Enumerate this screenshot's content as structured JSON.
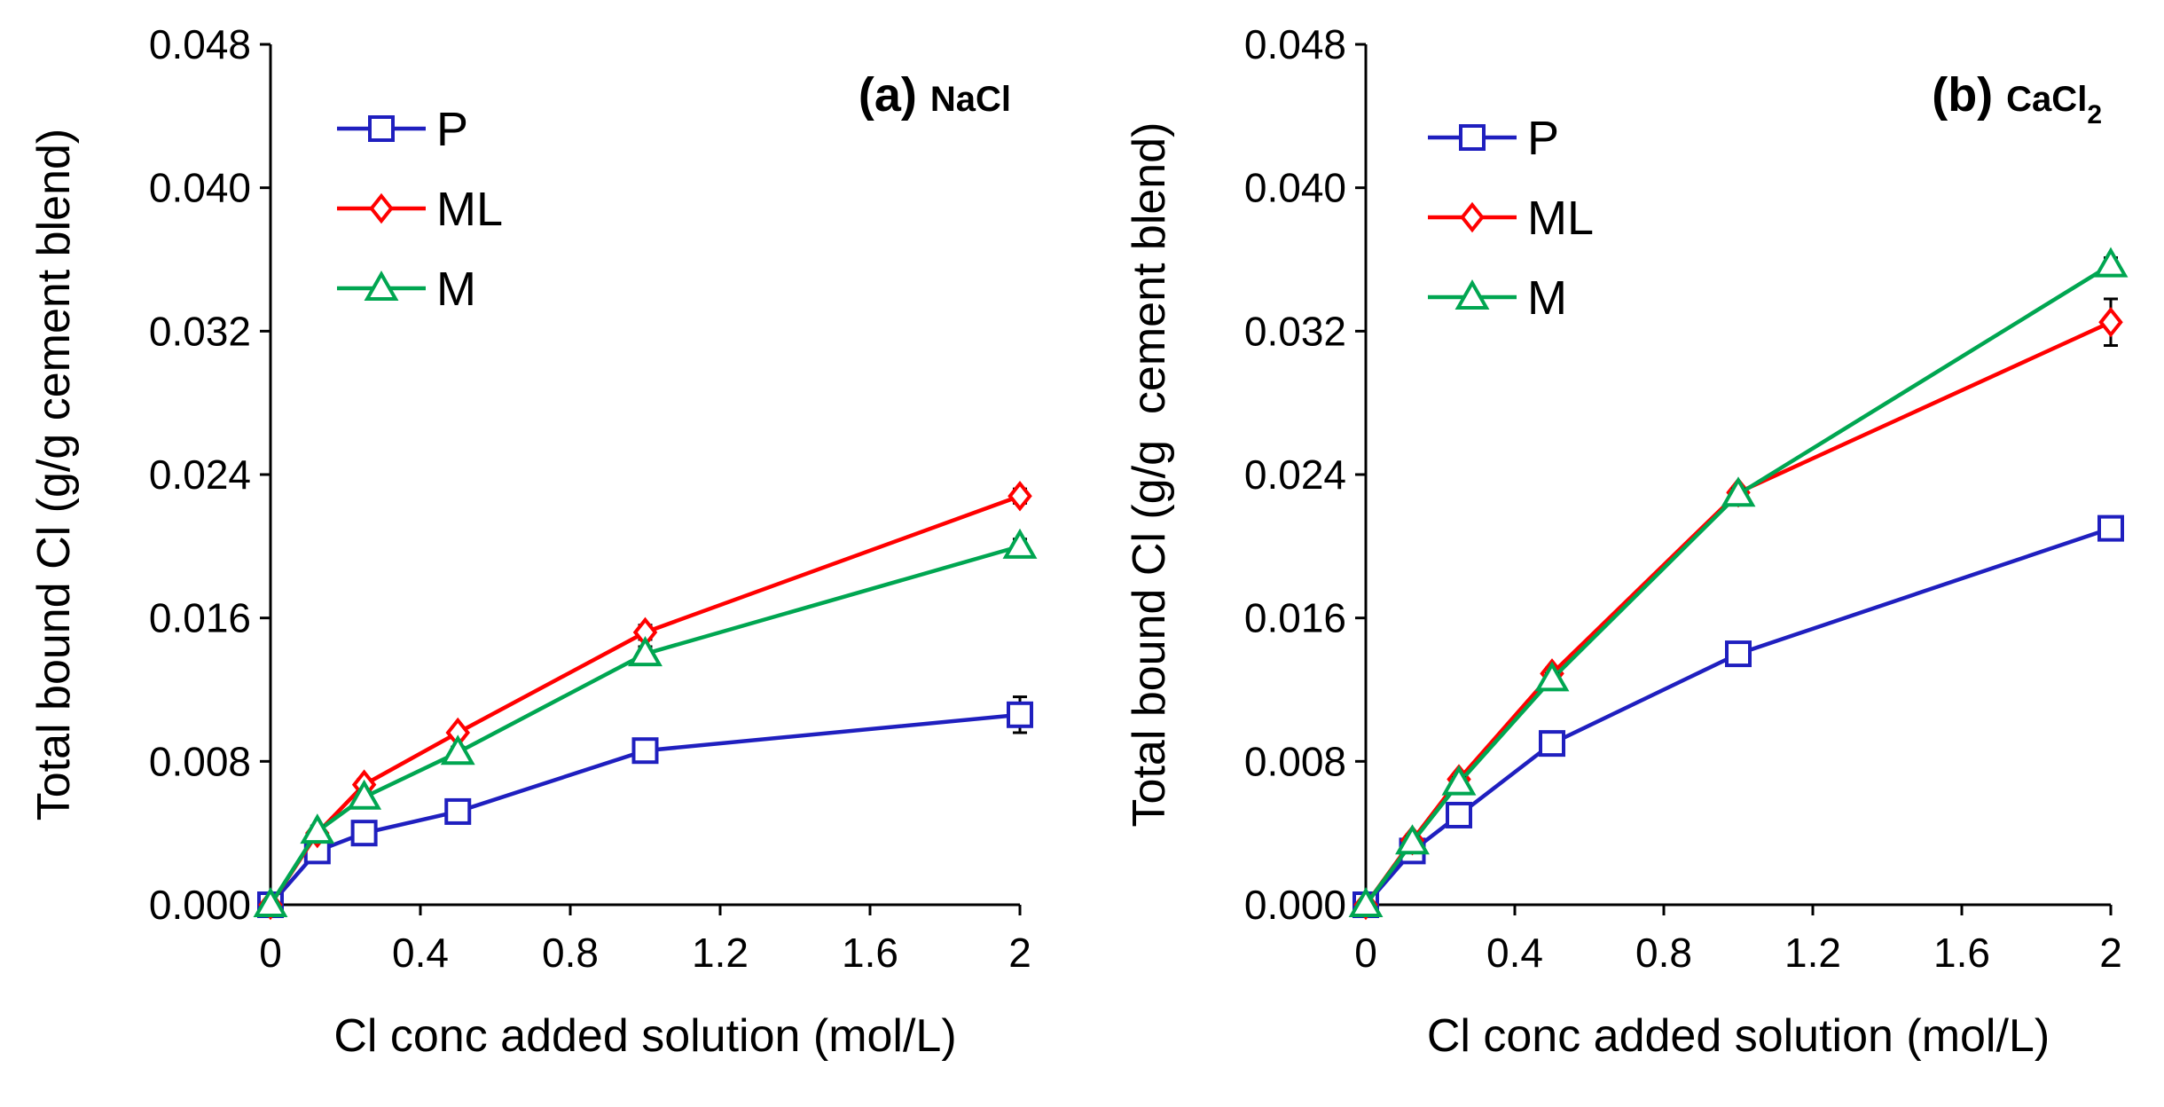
{
  "chart_data": [
    {
      "type": "line",
      "title": "(a)",
      "title_suffix": "NaCl",
      "title_subscript": "",
      "xlabel": "Cl conc added solution (mol/L)",
      "ylabel": "Total bound Cl (g/g cement blend)",
      "xlim": [
        0,
        2
      ],
      "ylim": [
        0,
        0.048
      ],
      "x_ticks": [
        0,
        0.4,
        0.8,
        1.2,
        1.6,
        2
      ],
      "x_tick_labels": [
        "0",
        "0.4",
        "0.8",
        "1.2",
        "1.6",
        "2"
      ],
      "y_ticks": [
        0,
        0.008,
        0.016,
        0.024,
        0.032,
        0.04,
        0.048
      ],
      "y_tick_labels": [
        "0.000",
        "0.008",
        "0.016",
        "0.024",
        "0.032",
        "0.040",
        "0.048"
      ],
      "grid": false,
      "legend_position": "top-left",
      "x": [
        0,
        0.125,
        0.25,
        0.5,
        1,
        2
      ],
      "series": [
        {
          "name": "P",
          "color": "#1f1fbf",
          "marker": "square",
          "values": [
            0,
            0.003,
            0.004,
            0.0052,
            0.0086,
            0.0106
          ],
          "errors": [
            0,
            0.0004,
            0.0003,
            0.0004,
            0.0003,
            0.001
          ]
        },
        {
          "name": "ML",
          "color": "#ff0000",
          "marker": "diamond",
          "values": [
            0,
            0.004,
            0.0067,
            0.0096,
            0.0152,
            0.0228
          ],
          "errors": [
            0,
            0.0003,
            0.0003,
            0.0003,
            0.0004,
            0.0004
          ]
        },
        {
          "name": "M",
          "color": "#00a651",
          "marker": "triangle",
          "values": [
            0,
            0.0041,
            0.006,
            0.0085,
            0.014,
            0.02
          ],
          "errors": [
            0,
            0.0003,
            0.0003,
            0.0003,
            0.0004,
            0.0004
          ]
        }
      ]
    },
    {
      "type": "line",
      "title": "(b)",
      "title_suffix": "CaCl",
      "title_subscript": "2",
      "xlabel": "Cl conc added solution (mol/L)",
      "ylabel": "Total bound Cl (g/g  cement blend)",
      "xlim": [
        0,
        2
      ],
      "ylim": [
        0,
        0.048
      ],
      "x_ticks": [
        0,
        0.4,
        0.8,
        1.2,
        1.6,
        2
      ],
      "x_tick_labels": [
        "0",
        "0.4",
        "0.8",
        "1.2",
        "1.6",
        "2"
      ],
      "y_ticks": [
        0,
        0.008,
        0.016,
        0.024,
        0.032,
        0.04,
        0.048
      ],
      "y_tick_labels": [
        "0.000",
        "0.008",
        "0.016",
        "0.024",
        "0.032",
        "0.040",
        "0.048"
      ],
      "grid": false,
      "legend_position": "top-left",
      "x": [
        0,
        0.125,
        0.25,
        0.5,
        1,
        2
      ],
      "series": [
        {
          "name": "P",
          "color": "#1f1fbf",
          "marker": "square",
          "values": [
            0,
            0.003,
            0.005,
            0.009,
            0.014,
            0.021
          ],
          "errors": [
            0,
            0.0003,
            0.0003,
            0.0003,
            0.0004,
            0.0004
          ]
        },
        {
          "name": "ML",
          "color": "#ff0000",
          "marker": "diamond",
          "values": [
            0,
            0.0036,
            0.007,
            0.0129,
            0.023,
            0.0325
          ],
          "errors": [
            0,
            0.0003,
            0.0003,
            0.0003,
            0.0003,
            0.0013
          ]
        },
        {
          "name": "M",
          "color": "#00a651",
          "marker": "triangle",
          "values": [
            0,
            0.0035,
            0.0068,
            0.0126,
            0.0229,
            0.0357
          ],
          "errors": [
            0,
            0.0003,
            0.0003,
            0.0003,
            0.0003,
            0.0004
          ]
        }
      ]
    }
  ]
}
